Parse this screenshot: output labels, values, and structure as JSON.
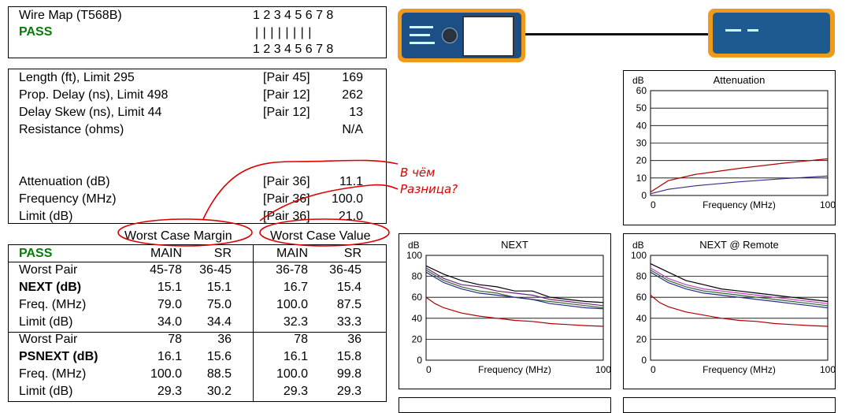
{
  "wiremap": {
    "title": "Wire Map (T568B)",
    "status": "PASS",
    "pins_top": "1 2 3 4 5 6 7 8",
    "pins_mid": "| | | | | | | |",
    "pins_bottom": "1 2 3 4 5 6 7 8"
  },
  "summary": {
    "rows": [
      {
        "label": "Length (ft), Limit 295",
        "pair": "[Pair 45]",
        "value": "169"
      },
      {
        "label": "Prop. Delay (ns), Limit 498",
        "pair": "[Pair 12]",
        "value": "262"
      },
      {
        "label": "Delay Skew (ns), Limit 44",
        "pair": "[Pair 12]",
        "value": "13"
      },
      {
        "label": "Resistance (ohms)",
        "pair": "",
        "value": "N/A"
      },
      {
        "label": "Attenuation (dB)",
        "pair": "[Pair 36]",
        "value": "11.1"
      },
      {
        "label": "Frequency (MHz)",
        "pair": "[Pair 36]",
        "value": "100.0"
      },
      {
        "label": "Limit (dB)",
        "pair": "[Pair 36]",
        "value": "21.0"
      }
    ]
  },
  "worst": {
    "margin_label": "Worst Case Margin",
    "value_label": "Worst Case Value",
    "status": "PASS",
    "cols": [
      "MAIN",
      "SR",
      "MAIN",
      "SR"
    ],
    "next_rows": [
      {
        "label": "Worst Pair",
        "vals": [
          "45-78",
          "36-45",
          "36-78",
          "36-45"
        ],
        "bold": false
      },
      {
        "label": "NEXT (dB)",
        "vals": [
          "15.1",
          "15.1",
          "16.7",
          "15.4"
        ],
        "bold": true
      },
      {
        "label": "Freq. (MHz)",
        "vals": [
          "79.0",
          "75.0",
          "100.0",
          "87.5"
        ],
        "bold": false
      },
      {
        "label": "Limit (dB)",
        "vals": [
          "34.0",
          "34.4",
          "32.3",
          "33.3"
        ],
        "bold": false
      }
    ],
    "psnext_rows": [
      {
        "label": "Worst Pair",
        "vals": [
          "78",
          "36",
          "78",
          "36"
        ],
        "bold": false
      },
      {
        "label": "PSNEXT (dB)",
        "vals": [
          "16.1",
          "15.6",
          "16.1",
          "15.8"
        ],
        "bold": true
      },
      {
        "label": "Freq. (MHz)",
        "vals": [
          "100.0",
          "88.5",
          "100.0",
          "99.8"
        ],
        "bold": false
      },
      {
        "label": "Limit (dB)",
        "vals": [
          "29.3",
          "30.2",
          "29.3",
          "29.3"
        ],
        "bold": false
      }
    ]
  },
  "annotation": {
    "line1": "В чём",
    "line2": "Разница?",
    "color": "#dd0000"
  },
  "chart_data": [
    {
      "type": "line",
      "title": "Attenuation",
      "ylabel": "dB",
      "xlabel": "Frequency (MHz)",
      "xlim": [
        0,
        100
      ],
      "ylim": [
        0,
        60
      ],
      "yticks": [
        "0",
        "10",
        "20",
        "30",
        "40",
        "50",
        "60"
      ],
      "xticks": [
        "0",
        "100"
      ],
      "grid": true,
      "series": [
        {
          "color": "#b00000",
          "x": [
            0,
            10,
            25,
            50,
            75,
            100
          ],
          "y": [
            2,
            8.5,
            12,
            15.5,
            18.5,
            21
          ]
        },
        {
          "color": "#3b2a8a",
          "x": [
            0,
            10,
            25,
            50,
            75,
            100
          ],
          "y": [
            1,
            3.5,
            5.5,
            7.8,
            9.6,
            11.1
          ]
        }
      ]
    },
    {
      "type": "line",
      "title": "NEXT",
      "ylabel": "dB",
      "xlabel": "Frequency (MHz)",
      "xlim": [
        0,
        100
      ],
      "ylim": [
        0,
        100
      ],
      "yticks": [
        "0",
        "20",
        "40",
        "60",
        "80",
        "100"
      ],
      "xticks": [
        "0",
        "100"
      ],
      "grid": true,
      "series": [
        {
          "color": "#b00000",
          "x": [
            0,
            5,
            10,
            20,
            30,
            40,
            50,
            60,
            70,
            80,
            90,
            100
          ],
          "y": [
            60,
            54,
            50,
            45,
            42,
            40,
            38,
            37,
            35,
            34,
            33,
            32.3
          ]
        },
        {
          "color": "#000000",
          "x": [
            0,
            10,
            20,
            30,
            40,
            50,
            60,
            70,
            80,
            90,
            100
          ],
          "y": [
            90,
            82,
            76,
            72,
            70,
            66,
            66,
            60,
            58,
            56,
            55
          ]
        },
        {
          "color": "#7a1f7a",
          "x": [
            0,
            10,
            20,
            30,
            40,
            50,
            60,
            70,
            80,
            90,
            100
          ],
          "y": [
            88,
            78,
            72,
            70,
            66,
            64,
            62,
            58,
            56,
            54,
            52
          ]
        },
        {
          "color": "#2a6a2a",
          "x": [
            0,
            10,
            20,
            30,
            40,
            50,
            60,
            70,
            80,
            90,
            100
          ],
          "y": [
            86,
            76,
            70,
            66,
            64,
            60,
            58,
            56,
            54,
            52,
            50
          ]
        },
        {
          "color": "#2a2a8a",
          "x": [
            0,
            10,
            20,
            30,
            40,
            50,
            60,
            70,
            80,
            90,
            100
          ],
          "y": [
            84,
            74,
            68,
            64,
            62,
            60,
            58,
            54,
            52,
            50,
            49
          ]
        }
      ]
    },
    {
      "type": "line",
      "title": "NEXT @ Remote",
      "ylabel": "dB",
      "xlabel": "Frequency (MHz)",
      "xlim": [
        0,
        100
      ],
      "ylim": [
        0,
        100
      ],
      "yticks": [
        "0",
        "20",
        "40",
        "60",
        "80",
        "100"
      ],
      "xticks": [
        "0",
        "100"
      ],
      "grid": true,
      "series": [
        {
          "color": "#b00000",
          "x": [
            0,
            5,
            10,
            20,
            30,
            40,
            50,
            60,
            70,
            80,
            90,
            100
          ],
          "y": [
            62,
            55,
            51,
            46,
            43,
            40,
            38,
            37,
            35,
            34,
            33,
            32.3
          ]
        },
        {
          "color": "#000000",
          "x": [
            0,
            10,
            20,
            30,
            40,
            50,
            60,
            70,
            80,
            90,
            100
          ],
          "y": [
            92,
            84,
            76,
            72,
            68,
            66,
            64,
            62,
            60,
            58,
            56
          ]
        },
        {
          "color": "#c040c0",
          "x": [
            0,
            10,
            20,
            30,
            40,
            50,
            60,
            70,
            80,
            90,
            100
          ],
          "y": [
            88,
            78,
            72,
            68,
            66,
            64,
            62,
            60,
            58,
            56,
            54
          ]
        },
        {
          "color": "#2a6a2a",
          "x": [
            0,
            10,
            20,
            30,
            40,
            50,
            60,
            70,
            80,
            90,
            100
          ],
          "y": [
            86,
            76,
            70,
            66,
            64,
            62,
            60,
            58,
            56,
            54,
            52
          ]
        },
        {
          "color": "#2a2a8a",
          "x": [
            0,
            10,
            20,
            30,
            40,
            50,
            60,
            70,
            80,
            90,
            100
          ],
          "y": [
            84,
            74,
            68,
            64,
            62,
            60,
            58,
            56,
            54,
            52,
            50
          ]
        }
      ]
    }
  ]
}
